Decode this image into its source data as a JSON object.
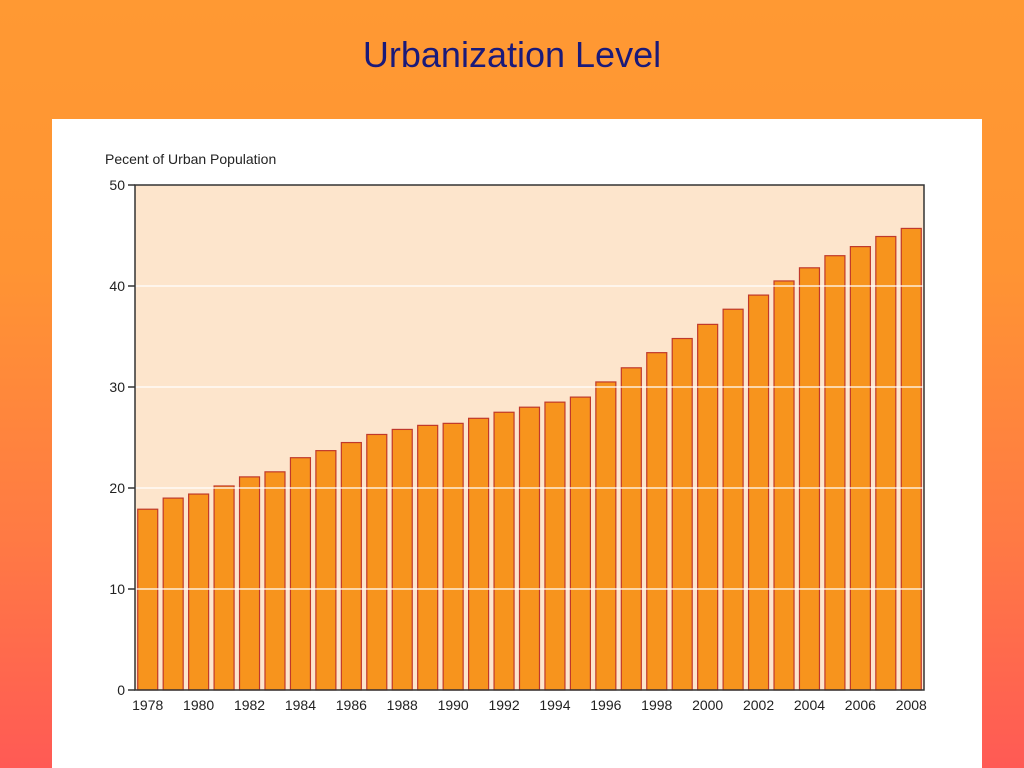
{
  "slide": {
    "title": "Urbanization Level"
  },
  "colors": {
    "background_top": "#ff9933",
    "background_bottom": "#ff5a55",
    "title_text": "#1a1a7a",
    "plot_background": "#fde5cc",
    "bar_fill": "#f7941d",
    "bar_stroke": "#c0392b",
    "gridline": "#ffffff",
    "axis": "#333333"
  },
  "chart_data": {
    "type": "bar",
    "title": "",
    "ylabel": "Pecent of Urban Population",
    "xlabel": "",
    "ylim": [
      0,
      50
    ],
    "yticks": [
      0,
      10,
      20,
      30,
      40,
      50
    ],
    "grid": true,
    "legend": "none",
    "categories": [
      "1978",
      "1979",
      "1980",
      "1981",
      "1982",
      "1983",
      "1984",
      "1985",
      "1986",
      "1987",
      "1988",
      "1989",
      "1990",
      "1991",
      "1992",
      "1993",
      "1994",
      "1995",
      "1996",
      "1997",
      "1998",
      "1999",
      "2000",
      "2001",
      "2002",
      "2003",
      "2004",
      "2005",
      "2006",
      "2007",
      "2008"
    ],
    "xtick_labels": [
      "1978",
      "1980",
      "1982",
      "1984",
      "1986",
      "1988",
      "1990",
      "1992",
      "1994",
      "1996",
      "1998",
      "2000",
      "2002",
      "2004",
      "2006",
      "2008"
    ],
    "values": [
      17.9,
      19.0,
      19.4,
      20.2,
      21.1,
      21.6,
      23.0,
      23.7,
      24.5,
      25.3,
      25.8,
      26.2,
      26.4,
      26.9,
      27.5,
      28.0,
      28.5,
      29.0,
      30.5,
      31.9,
      33.4,
      34.8,
      36.2,
      37.7,
      39.1,
      40.5,
      41.8,
      43.0,
      43.9,
      44.9,
      45.7
    ]
  }
}
